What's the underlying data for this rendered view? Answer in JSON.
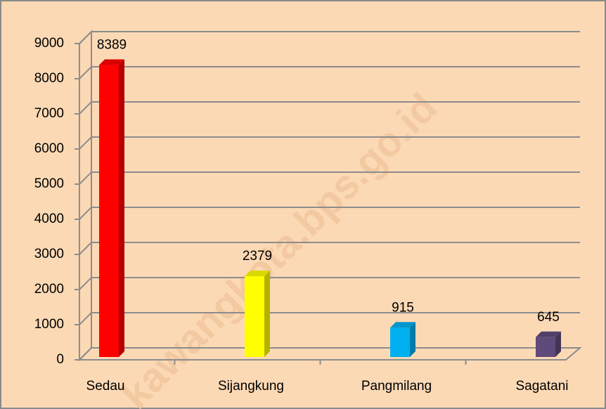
{
  "chart_data": {
    "type": "bar3d",
    "categories": [
      "Sedau",
      "Sijangkung",
      "Pangmilang",
      "Sagatani"
    ],
    "values": [
      8389,
      2379,
      915,
      645
    ],
    "colors": [
      "#ff0000",
      "#ffff00",
      "#00b0f0",
      "#604a7b"
    ],
    "ylim": [
      0,
      9000
    ],
    "yticks": [
      0,
      1000,
      2000,
      3000,
      4000,
      5000,
      6000,
      7000,
      8000,
      9000
    ],
    "grid": true,
    "data_labels": true,
    "watermark": "kawangkota.bps.go.id"
  }
}
